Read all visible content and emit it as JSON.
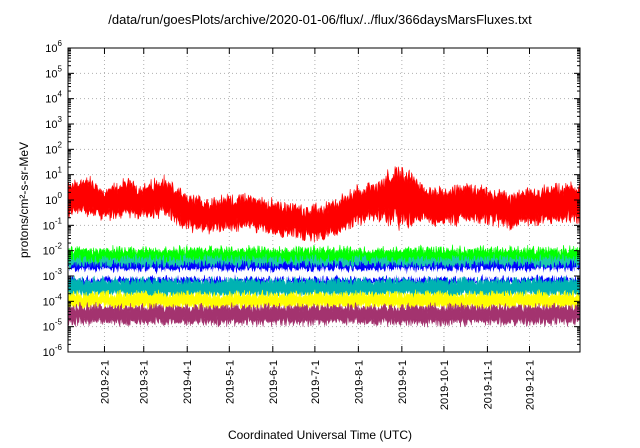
{
  "chart_data": {
    "type": "line",
    "title": "/data/run/goesPlots/archive/2020-01-06/flux/../flux/366daysMarsFluxes.txt",
    "xlabel": "Coordinated Universal Time (UTC)",
    "ylabel": "protons/cm²-s-sr-MeV",
    "y_scale": "log",
    "ylim": [
      1e-06,
      1000000.0
    ],
    "xlim": [
      "2019-01-06",
      "2020-01-06"
    ],
    "grid": true,
    "x_ticks": [
      "2019-2-1",
      "2019-3-1",
      "2019-4-1",
      "2019-5-1",
      "2019-6-1",
      "2019-7-1",
      "2019-8-1",
      "2019-9-1",
      "2019-10-1",
      "2019-11-1",
      "2019-12-1"
    ],
    "y_ticks": [
      {
        "value": 1e-06,
        "base": "10",
        "exp": "-6"
      },
      {
        "value": 1e-05,
        "base": "10",
        "exp": "-5"
      },
      {
        "value": 0.0001,
        "base": "10",
        "exp": "-4"
      },
      {
        "value": 0.001,
        "base": "10",
        "exp": "-3"
      },
      {
        "value": 0.01,
        "base": "10",
        "exp": "-2"
      },
      {
        "value": 0.1,
        "base": "10",
        "exp": "-1"
      },
      {
        "value": 1.0,
        "base": "10",
        "exp": "0"
      },
      {
        "value": 10.0,
        "base": "10",
        "exp": "1"
      },
      {
        "value": 100.0,
        "base": "10",
        "exp": "2"
      },
      {
        "value": 1000.0,
        "base": "10",
        "exp": "3"
      },
      {
        "value": 10000.0,
        "base": "10",
        "exp": "4"
      },
      {
        "value": 100000.0,
        "base": "10",
        "exp": "5"
      },
      {
        "value": 1000000.0,
        "base": "10",
        "exp": "6"
      }
    ],
    "series": [
      {
        "color": "#ff0000",
        "x": [
          "2019-01-06",
          "2019-01-20",
          "2019-02-01",
          "2019-02-15",
          "2019-03-01",
          "2019-03-15",
          "2019-04-01",
          "2019-04-15",
          "2019-05-01",
          "2019-05-15",
          "2019-06-01",
          "2019-06-15",
          "2019-07-01",
          "2019-07-15",
          "2019-08-01",
          "2019-08-15",
          "2019-09-01",
          "2019-09-15",
          "2019-10-01",
          "2019-10-15",
          "2019-11-01",
          "2019-11-15",
          "2019-12-01",
          "2019-12-15",
          "2020-01-06"
        ],
        "values": [
          1.0,
          1.5,
          0.6,
          1.2,
          0.8,
          1.5,
          0.3,
          0.25,
          0.3,
          0.35,
          0.2,
          0.15,
          0.12,
          0.2,
          0.6,
          1.0,
          1.5,
          0.7,
          0.5,
          0.8,
          0.6,
          0.4,
          0.5,
          0.7,
          0.8
        ],
        "spread": [
          5,
          6,
          4,
          6,
          5,
          6,
          5,
          5,
          5,
          5,
          5,
          5,
          5,
          5,
          6,
          6,
          20,
          6,
          6,
          6,
          5,
          5,
          5,
          6,
          6
        ]
      },
      {
        "color": "#00ff00",
        "level": 0.005,
        "spread": 2.6
      },
      {
        "color": "#1ec8ae",
        "level": 0.0022,
        "spread": 2.6
      },
      {
        "color": "#0000ff",
        "level": 0.0012,
        "spread": 2.8
      },
      {
        "color": "#ffffff",
        "level": 0.0012,
        "spread": 1.6
      },
      {
        "color": "#00b2b2",
        "level": 0.00035,
        "spread": 2.2
      },
      {
        "color": "#ffff00",
        "level": 0.00011,
        "spread": 2.0
      },
      {
        "color": "#a3336f",
        "level": 3e-05,
        "spread": 2.4
      }
    ]
  }
}
